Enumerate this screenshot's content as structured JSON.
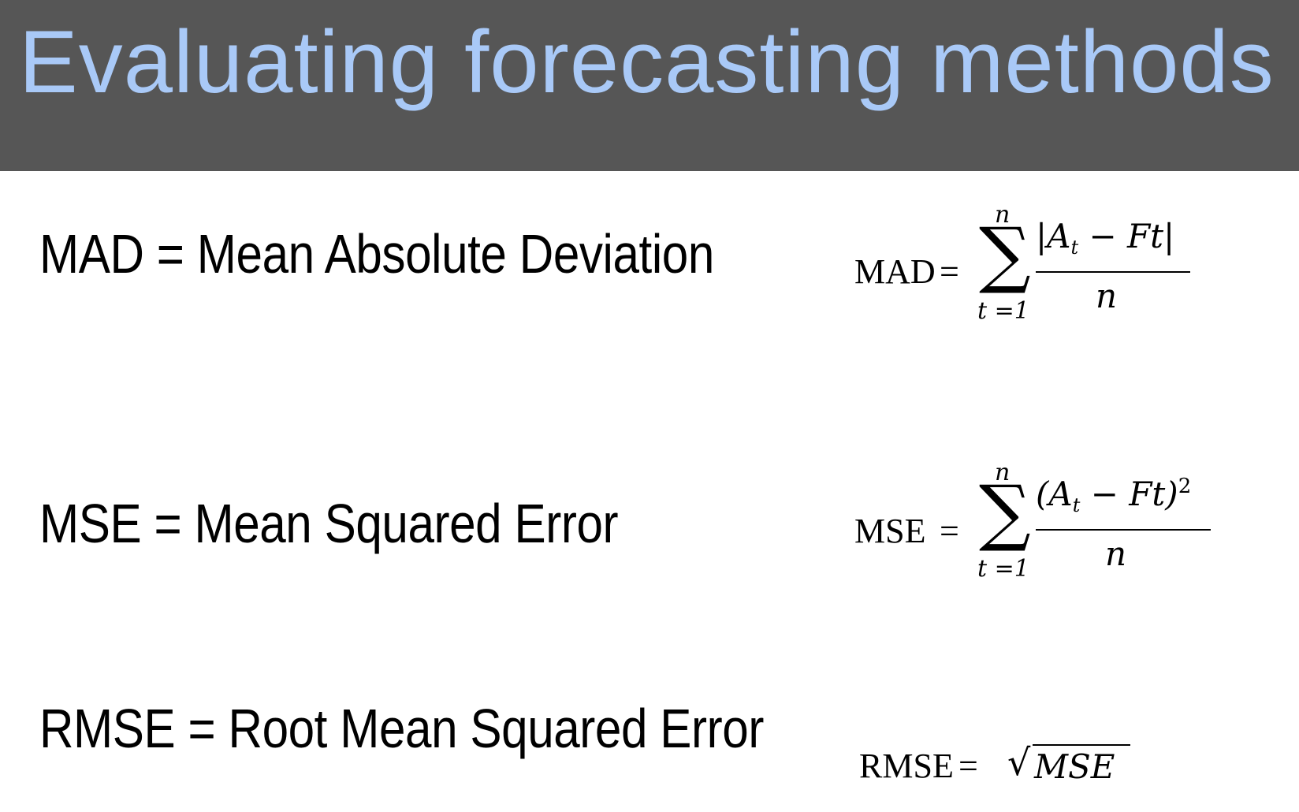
{
  "header": {
    "title": "Evaluating forecasting methods",
    "background_color": "#565656",
    "title_color": "#a9c9f7"
  },
  "definitions": [
    {
      "text": "MAD = Mean Absolute Deviation"
    },
    {
      "text": "MSE = Mean Squared Error"
    },
    {
      "text": "RMSE = Root Mean Squared Error"
    }
  ],
  "formulas": {
    "mad": {
      "lhs": "MAD",
      "equals": "=",
      "upper": "n",
      "lower": "t =1",
      "numerator_open": "|A",
      "numerator_sub": "t",
      "numerator_rest": " − Ft|",
      "denominator": "n"
    },
    "mse": {
      "lhs": "MSE",
      "equals": "=",
      "upper": "n",
      "lower": "t =1",
      "numerator_open": "(A",
      "numerator_sub": "t",
      "numerator_rest": " − Ft)",
      "numerator_sup": "2",
      "denominator": "n"
    },
    "rmse": {
      "lhs": "RMSE",
      "equals": "=",
      "radicand": "MSE"
    }
  }
}
